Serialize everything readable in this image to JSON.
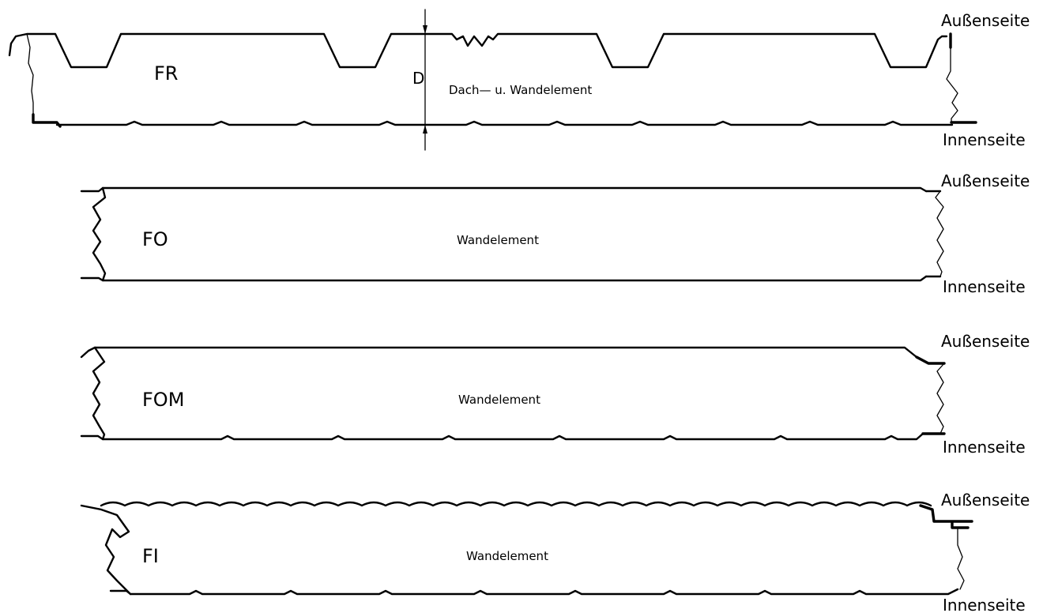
{
  "panels": [
    {
      "code": "FR",
      "description": "Dach— u. Wandelement",
      "outer_label": "Außenseite",
      "inner_label": "Innenseite"
    },
    {
      "code": "FO",
      "description": "Wandelement",
      "outer_label": "Außenseite",
      "inner_label": "Innenseite"
    },
    {
      "code": "FOM",
      "description": "Wandelement",
      "outer_label": "Außenseite",
      "inner_label": "Innenseite"
    },
    {
      "code": "FI",
      "description": "Wandelement",
      "outer_label": "Außenseite",
      "inner_label": "Innenseite"
    }
  ],
  "dimension": {
    "label": "D"
  }
}
